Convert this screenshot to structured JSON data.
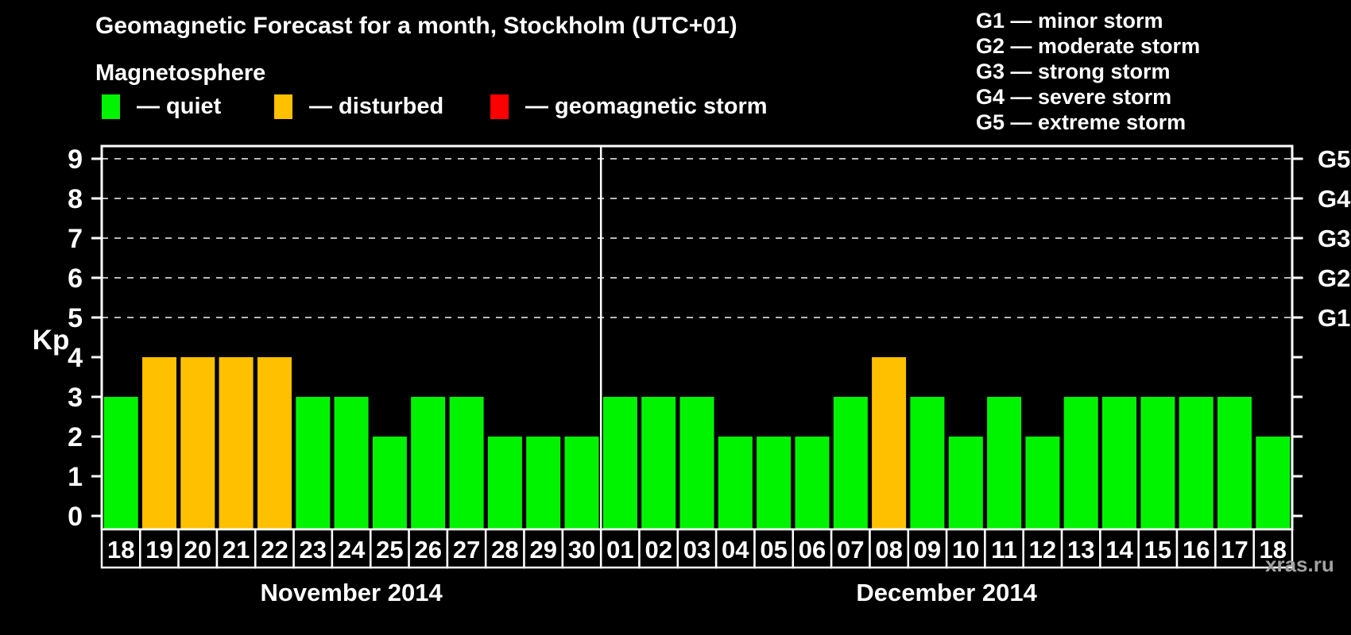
{
  "title": "Geomagnetic Forecast for a month, Stockholm (UTC+01)",
  "subtitle": "Magnetosphere",
  "legend": {
    "items": [
      {
        "name": "quiet",
        "label": "— quiet",
        "color": "#00f400"
      },
      {
        "name": "disturbed",
        "label": "— disturbed",
        "color": "#ffc000"
      },
      {
        "name": "geomagnetic-storm",
        "label": "— geomagnetic storm",
        "color": "#ff0000"
      }
    ]
  },
  "g_scale_legend": [
    "G1 — minor storm",
    "G2 — moderate storm",
    "G3 — strong storm",
    "G4 — severe storm",
    "G5 — extreme storm"
  ],
  "watermark": "xras.ru",
  "chart_data": {
    "type": "bar",
    "ylabel": "Kp",
    "ylim": [
      0,
      9
    ],
    "yticks": [
      0,
      1,
      2,
      3,
      4,
      5,
      6,
      7,
      8,
      9
    ],
    "gridlines_at": [
      5,
      6,
      7,
      8,
      9
    ],
    "grid": "dashed",
    "legend_position": "top",
    "right_axis": [
      {
        "label": "G1",
        "kp": 5
      },
      {
        "label": "G2",
        "kp": 6
      },
      {
        "label": "G3",
        "kp": 7
      },
      {
        "label": "G4",
        "kp": 8
      },
      {
        "label": "G5",
        "kp": 9
      }
    ],
    "months": [
      {
        "label": "November 2014",
        "days": 13
      },
      {
        "label": "December 2014",
        "days": 18
      }
    ],
    "colors": {
      "quiet": "#00f400",
      "disturbed": "#ffc000",
      "storm": "#ff0000"
    },
    "points": [
      {
        "day": "18",
        "kp": 3,
        "status": "quiet"
      },
      {
        "day": "19",
        "kp": 4,
        "status": "disturbed"
      },
      {
        "day": "20",
        "kp": 4,
        "status": "disturbed"
      },
      {
        "day": "21",
        "kp": 4,
        "status": "disturbed"
      },
      {
        "day": "22",
        "kp": 4,
        "status": "disturbed"
      },
      {
        "day": "23",
        "kp": 3,
        "status": "quiet"
      },
      {
        "day": "24",
        "kp": 3,
        "status": "quiet"
      },
      {
        "day": "25",
        "kp": 2,
        "status": "quiet"
      },
      {
        "day": "26",
        "kp": 3,
        "status": "quiet"
      },
      {
        "day": "27",
        "kp": 3,
        "status": "quiet"
      },
      {
        "day": "28",
        "kp": 2,
        "status": "quiet"
      },
      {
        "day": "29",
        "kp": 2,
        "status": "quiet"
      },
      {
        "day": "30",
        "kp": 2,
        "status": "quiet"
      },
      {
        "day": "01",
        "kp": 3,
        "status": "quiet"
      },
      {
        "day": "02",
        "kp": 3,
        "status": "quiet"
      },
      {
        "day": "03",
        "kp": 3,
        "status": "quiet"
      },
      {
        "day": "04",
        "kp": 2,
        "status": "quiet"
      },
      {
        "day": "05",
        "kp": 2,
        "status": "quiet"
      },
      {
        "day": "06",
        "kp": 2,
        "status": "quiet"
      },
      {
        "day": "07",
        "kp": 3,
        "status": "quiet"
      },
      {
        "day": "08",
        "kp": 4,
        "status": "disturbed"
      },
      {
        "day": "09",
        "kp": 3,
        "status": "quiet"
      },
      {
        "day": "10",
        "kp": 2,
        "status": "quiet"
      },
      {
        "day": "11",
        "kp": 3,
        "status": "quiet"
      },
      {
        "day": "12",
        "kp": 2,
        "status": "quiet"
      },
      {
        "day": "13",
        "kp": 3,
        "status": "quiet"
      },
      {
        "day": "14",
        "kp": 3,
        "status": "quiet"
      },
      {
        "day": "15",
        "kp": 3,
        "status": "quiet"
      },
      {
        "day": "16",
        "kp": 3,
        "status": "quiet"
      },
      {
        "day": "17",
        "kp": 3,
        "status": "quiet"
      },
      {
        "day": "18",
        "kp": 2,
        "status": "quiet"
      }
    ]
  }
}
